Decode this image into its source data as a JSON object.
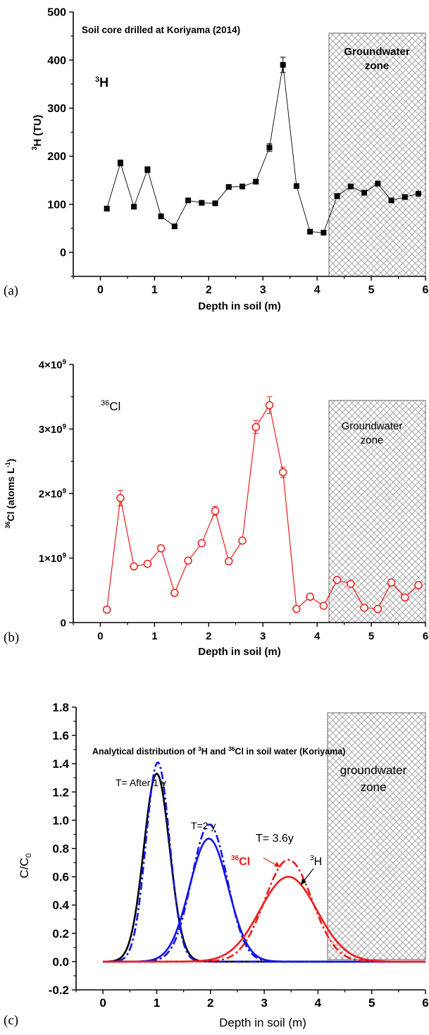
{
  "panels": [
    {
      "label": "(a)",
      "title": "Soil core drilled at Koriyama (2014)",
      "zone_label_line1": "Groundwater",
      "zone_label_line2": "zone",
      "species_label": "H",
      "species_mass": "3"
    },
    {
      "label": "(b)",
      "zone_label_line1": "Groundwater",
      "zone_label_line2": "zone",
      "species_label": "Cl",
      "species_mass": "36"
    },
    {
      "label": "(c)",
      "title_parts": [
        "Analytical distribution of ",
        "3",
        "H and ",
        "36",
        "Cl in soil water (Koriyama)"
      ],
      "zone_label_line1": "groundwater",
      "zone_label_line2": "zone",
      "annotations": {
        "t1": "T= After 1 y",
        "t2": "T=2 y",
        "t3": "T= 3.6y",
        "cl_mass": "36",
        "cl_label": "Cl",
        "h_mass": "3",
        "h_label": "H"
      }
    }
  ],
  "colors": {
    "h3": "#000000",
    "cl36": "#ee1c1c",
    "blue": "#1414e6",
    "hatch": "#888888"
  },
  "chart_data": [
    {
      "type": "scatter",
      "title": "Soil core drilled at Koriyama (2014)",
      "xlabel": "Depth in soil (m)",
      "ylabel_parts": [
        "3",
        "H  (TU)"
      ],
      "xlim": [
        -0.5,
        6
      ],
      "ylim": [
        -50,
        500
      ],
      "xticks": [
        0,
        1,
        2,
        3,
        4,
        5,
        6
      ],
      "yticks": [
        0,
        100,
        200,
        300,
        400,
        500
      ],
      "shaded_region": [
        4.22,
        6
      ],
      "series": [
        {
          "color_key": "h3",
          "marker": "square-filled",
          "x": [
            0.12,
            0.37,
            0.62,
            0.87,
            1.12,
            1.37,
            1.62,
            1.87,
            2.12,
            2.37,
            2.62,
            2.87,
            3.12,
            3.37,
            3.62,
            3.87,
            4.12,
            4.37,
            4.62,
            4.87,
            5.12,
            5.37,
            5.62,
            5.87
          ],
          "y": [
            91,
            186,
            95,
            172,
            75,
            54,
            108,
            103,
            102,
            136,
            137,
            147,
            218,
            390,
            138,
            43,
            41,
            117,
            137,
            124,
            143,
            108,
            115,
            122
          ],
          "err": [
            4,
            6,
            4,
            6,
            4,
            4,
            4,
            4,
            4,
            4,
            4,
            4,
            8,
            16,
            4,
            4,
            4,
            5,
            4,
            5,
            5,
            4,
            5,
            5
          ]
        }
      ]
    },
    {
      "type": "scatter",
      "xlabel": "Depth in soil (m)",
      "ylabel_parts": [
        "36",
        "Cl (atoms L",
        "-1",
        ")"
      ],
      "xlim": [
        -0.5,
        6
      ],
      "ylim": [
        0,
        4000000000
      ],
      "xticks": [
        0,
        1,
        2,
        3,
        4,
        5,
        6
      ],
      "yticks": [
        0,
        1000000000,
        2000000000,
        3000000000,
        4000000000
      ],
      "ytick_labels": [
        {
          "base": "0",
          "exp": ""
        },
        {
          "base": "1×10",
          "exp": "9"
        },
        {
          "base": "2×10",
          "exp": "9"
        },
        {
          "base": "3×10",
          "exp": "9"
        },
        {
          "base": "4×10",
          "exp": "9"
        }
      ],
      "shaded_region": [
        4.22,
        6
      ],
      "series": [
        {
          "color_key": "cl36",
          "marker": "circle-open",
          "x": [
            0.12,
            0.37,
            0.62,
            0.87,
            1.12,
            1.37,
            1.62,
            1.87,
            2.12,
            2.37,
            2.62,
            2.87,
            3.12,
            3.37,
            3.62,
            3.87,
            4.12,
            4.37,
            4.62,
            4.87,
            5.12,
            5.37,
            5.62,
            5.87
          ],
          "y": [
            200000000,
            1930000000,
            870000000,
            910000000,
            1150000000,
            460000000,
            960000000,
            1230000000,
            1730000000,
            950000000,
            1270000000,
            3030000000,
            3370000000,
            2330000000,
            210000000,
            400000000,
            260000000,
            660000000,
            600000000,
            230000000,
            210000000,
            620000000,
            390000000,
            580000000
          ],
          "err": [
            20000000,
            120000000,
            30000000,
            30000000,
            30000000,
            30000000,
            30000000,
            30000000,
            70000000,
            30000000,
            30000000,
            100000000,
            130000000,
            80000000,
            20000000,
            30000000,
            20000000,
            30000000,
            30000000,
            20000000,
            20000000,
            30000000,
            30000000,
            30000000
          ]
        }
      ]
    },
    {
      "type": "line",
      "xlabel": "Depth in soil (m)",
      "ylabel_parts": [
        "C/C",
        "0"
      ],
      "xlim": [
        -0.5,
        6
      ],
      "ylim": [
        -0.2,
        1.8
      ],
      "xticks": [
        0,
        1,
        2,
        3,
        4,
        5,
        6
      ],
      "yticks": [
        -0.2,
        0.0,
        0.2,
        0.4,
        0.6,
        0.8,
        1.0,
        1.2,
        1.4,
        1.6,
        1.8
      ],
      "shaded_region": [
        4.22,
        6
      ],
      "series": [
        {
          "color_key": "h3",
          "style": "solid",
          "mean": 1.0,
          "sigma": 0.24,
          "peak": 1.33,
          "x_range": [
            0,
            6
          ]
        },
        {
          "color_key": "blue",
          "style": "dashdot",
          "mean": 1.02,
          "sigma": 0.22,
          "peak": 1.41,
          "x_range": [
            0,
            6
          ]
        },
        {
          "color_key": "blue",
          "style": "solid",
          "mean": 1.97,
          "sigma": 0.36,
          "peak": 0.87,
          "x_range": [
            0,
            6
          ]
        },
        {
          "color_key": "blue",
          "style": "dashdot",
          "mean": 1.98,
          "sigma": 0.33,
          "peak": 0.97,
          "x_range": [
            0,
            6
          ]
        },
        {
          "color_key": "cl36",
          "style": "solid",
          "mean": 3.45,
          "sigma": 0.53,
          "peak": 0.6,
          "x_range": [
            0,
            6
          ]
        },
        {
          "color_key": "cl36",
          "style": "dashdot",
          "mean": 3.45,
          "sigma": 0.44,
          "peak": 0.72,
          "x_range": [
            0,
            6
          ]
        }
      ]
    }
  ]
}
